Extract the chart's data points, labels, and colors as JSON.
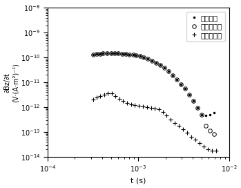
{
  "xlabel": "t (s)",
  "ylabel_line1": "∂Bz/∂t",
  "ylabel_line2": "(V·(A·m²)⁻¹)",
  "xlim": [
    0.0001,
    0.01
  ],
  "ylim": [
    1e-14,
    1e-08
  ],
  "legend": [
    "原始信号",
    "互感电动势",
    "大地二次场"
  ],
  "original_x": [
    0.00032,
    0.00035,
    0.00038,
    0.00041,
    0.00045,
    0.0005,
    0.00055,
    0.0006,
    0.00066,
    0.00073,
    0.0008,
    0.00088,
    0.00095,
    0.00105,
    0.00115,
    0.00128,
    0.00142,
    0.00158,
    0.00175,
    0.00195,
    0.00215,
    0.0024,
    0.00265,
    0.00295,
    0.00328,
    0.00365,
    0.00405,
    0.0045,
    0.005,
    0.00555,
    0.00615,
    0.00685
  ],
  "original_y": [
    1.3e-10,
    1.4e-10,
    1.4e-10,
    1.45e-10,
    1.45e-10,
    1.45e-10,
    1.45e-10,
    1.45e-10,
    1.42e-10,
    1.38e-10,
    1.35e-10,
    1.3e-10,
    1.22e-10,
    1.12e-10,
    1e-10,
    8.8e-11,
    7.5e-11,
    6.2e-11,
    5e-11,
    3.8e-11,
    2.8e-11,
    1.9e-11,
    1.3e-11,
    8.5e-12,
    5.5e-12,
    3.2e-12,
    1.8e-12,
    9.5e-13,
    5e-13,
    4.5e-13,
    5e-13,
    6e-13
  ],
  "mutual_x": [
    0.00032,
    0.00035,
    0.00038,
    0.00041,
    0.00045,
    0.0005,
    0.00055,
    0.0006,
    0.00066,
    0.00073,
    0.0008,
    0.00088,
    0.00095,
    0.00105,
    0.00115,
    0.00128,
    0.00142,
    0.00158,
    0.00175,
    0.00195,
    0.00215,
    0.0024,
    0.00265,
    0.00295,
    0.00328,
    0.00365,
    0.00405,
    0.0045,
    0.005,
    0.00555,
    0.00615,
    0.00685
  ],
  "mutual_y": [
    1.3e-10,
    1.4e-10,
    1.4e-10,
    1.45e-10,
    1.45e-10,
    1.45e-10,
    1.45e-10,
    1.45e-10,
    1.42e-10,
    1.38e-10,
    1.35e-10,
    1.3e-10,
    1.22e-10,
    1.12e-10,
    1e-10,
    8.8e-11,
    7.5e-11,
    6.2e-11,
    5e-11,
    3.8e-11,
    2.8e-11,
    1.9e-11,
    1.3e-11,
    8.5e-12,
    5.5e-12,
    3.2e-12,
    1.8e-12,
    9.5e-13,
    5e-13,
    1.8e-13,
    1.1e-13,
    8e-14
  ],
  "earth_x": [
    0.00032,
    0.00035,
    0.00038,
    0.00042,
    0.00046,
    0.00051,
    0.00056,
    0.00062,
    0.00068,
    0.00075,
    0.00083,
    0.00092,
    0.00102,
    0.00112,
    0.00125,
    0.00138,
    0.00152,
    0.00168,
    0.00186,
    0.00205,
    0.00228,
    0.00252,
    0.0028,
    0.0031,
    0.00345,
    0.00382,
    0.00425,
    0.00472,
    0.00525,
    0.00582,
    0.00648,
    0.0072
  ],
  "earth_y": [
    2e-12,
    2.5e-12,
    2.8e-12,
    3.2e-12,
    3.5e-12,
    3.5e-12,
    2.8e-12,
    2.2e-12,
    1.8e-12,
    1.5e-12,
    1.3e-12,
    1.2e-12,
    1.1e-12,
    1.05e-12,
    1e-12,
    9.5e-13,
    8.5e-13,
    8e-13,
    6.5e-13,
    4.5e-13,
    3.2e-13,
    2.3e-13,
    1.8e-13,
    1.3e-13,
    9e-14,
    6.5e-14,
    5e-14,
    3.5e-14,
    2.5e-14,
    2e-14,
    1.8e-14,
    1.8e-14
  ],
  "font_size_tick": 7,
  "font_size_label": 8,
  "font_size_legend": 7.5,
  "marker_size_dot": 3,
  "marker_size_circle": 4,
  "marker_size_plus": 5
}
